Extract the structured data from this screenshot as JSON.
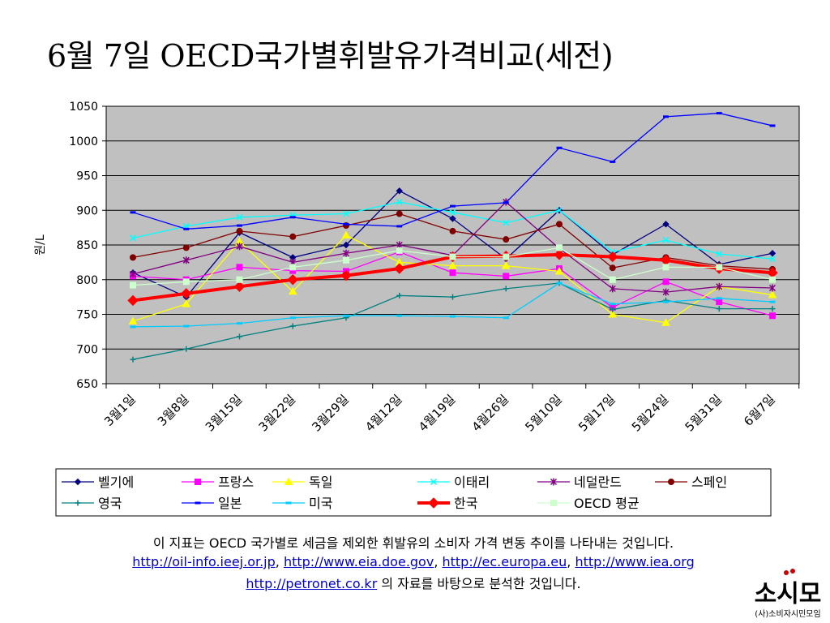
{
  "title": "6월 7일 OECD국가별휘발유가격비교(세전)",
  "chart_data": {
    "type": "line",
    "ylabel": "원/L",
    "ylim": [
      650,
      1050
    ],
    "yticks": [
      650,
      700,
      750,
      800,
      850,
      900,
      950,
      1000,
      1050
    ],
    "categories": [
      "3월1일",
      "3월8일",
      "3월15일",
      "3월22일",
      "3월29일",
      "4월12일",
      "4월19일",
      "4월26일",
      "5월10일",
      "5월17일",
      "5월24일",
      "5월31일",
      "6월7일"
    ],
    "grid": "horizontal",
    "plot_background": "#c0c0c0",
    "legend_position": "bottom",
    "series": [
      {
        "name": "벨기에",
        "color": "#000080",
        "marker": "diamond",
        "values": [
          810,
          775,
          868,
          832,
          850,
          928,
          888,
          830,
          900,
          836,
          880,
          822,
          838
        ]
      },
      {
        "name": "프랑스",
        "color": "#ff00ff",
        "marker": "square",
        "values": [
          805,
          800,
          818,
          813,
          812,
          840,
          810,
          805,
          816,
          760,
          797,
          768,
          748
        ]
      },
      {
        "name": "독일",
        "color": "#ffff00",
        "marker": "triangle",
        "values": [
          740,
          765,
          855,
          783,
          864,
          825,
          820,
          820,
          812,
          750,
          738,
          790,
          778
        ]
      },
      {
        "name": "이태리",
        "color": "#00ffff",
        "marker": "x",
        "values": [
          860,
          877,
          890,
          893,
          895,
          912,
          897,
          882,
          900,
          840,
          857,
          837,
          830
        ]
      },
      {
        "name": "네덜란드",
        "color": "#800080",
        "marker": "star",
        "values": [
          808,
          828,
          848,
          825,
          838,
          850,
          835,
          912,
          845,
          787,
          782,
          790,
          788
        ]
      },
      {
        "name": "스페인",
        "color": "#800000",
        "marker": "circle",
        "values": [
          832,
          846,
          870,
          862,
          878,
          895,
          870,
          858,
          880,
          817,
          832,
          820,
          815
        ]
      },
      {
        "name": "영국",
        "color": "#008080",
        "marker": "plus",
        "values": [
          685,
          700,
          718,
          733,
          745,
          777,
          775,
          787,
          795,
          757,
          770,
          758,
          758
        ]
      },
      {
        "name": "일본",
        "color": "#0000ff",
        "marker": "dash",
        "values": [
          897,
          873,
          878,
          890,
          880,
          877,
          906,
          911,
          990,
          970,
          1035,
          1040,
          1022
        ]
      },
      {
        "name": "미국",
        "color": "#00ccff",
        "marker": "dash",
        "values": [
          732,
          733,
          737,
          745,
          748,
          748,
          747,
          745,
          795,
          765,
          768,
          773,
          768
        ]
      },
      {
        "name": "한국",
        "color": "#ff0000",
        "marker": "diamond",
        "width": "thick",
        "values": [
          770,
          780,
          790,
          800,
          806,
          816,
          833,
          834,
          836,
          833,
          828,
          816,
          810
        ]
      },
      {
        "name": "OECD 평균",
        "color": "#ccffcc",
        "marker": "square",
        "values": [
          792,
          797,
          800,
          818,
          828,
          842,
          833,
          833,
          846,
          800,
          818,
          818,
          800
        ]
      }
    ]
  },
  "footer": {
    "line1": "이 지표는 OECD 국가별로 세금을 제외한 휘발유의 소비자 가격 변동 추이를 나타내는 것입니다.",
    "link1": "http://oil-info.ieej.or.jp",
    "sep1": ", ",
    "link2": "http://www.eia.doe.gov",
    "sep2": ", ",
    "link3": "http://ec.europa.eu",
    "sep3": ", ",
    "link4": "http://www.iea.org",
    "link5": "http://petronet.co.kr",
    "line3_suffix": " 의 자료를 바탕으로 분석한 것입니다."
  },
  "logo": {
    "text": "소시모",
    "subtext": "(사)소비자시민모임",
    "accent": "#cc0000"
  }
}
